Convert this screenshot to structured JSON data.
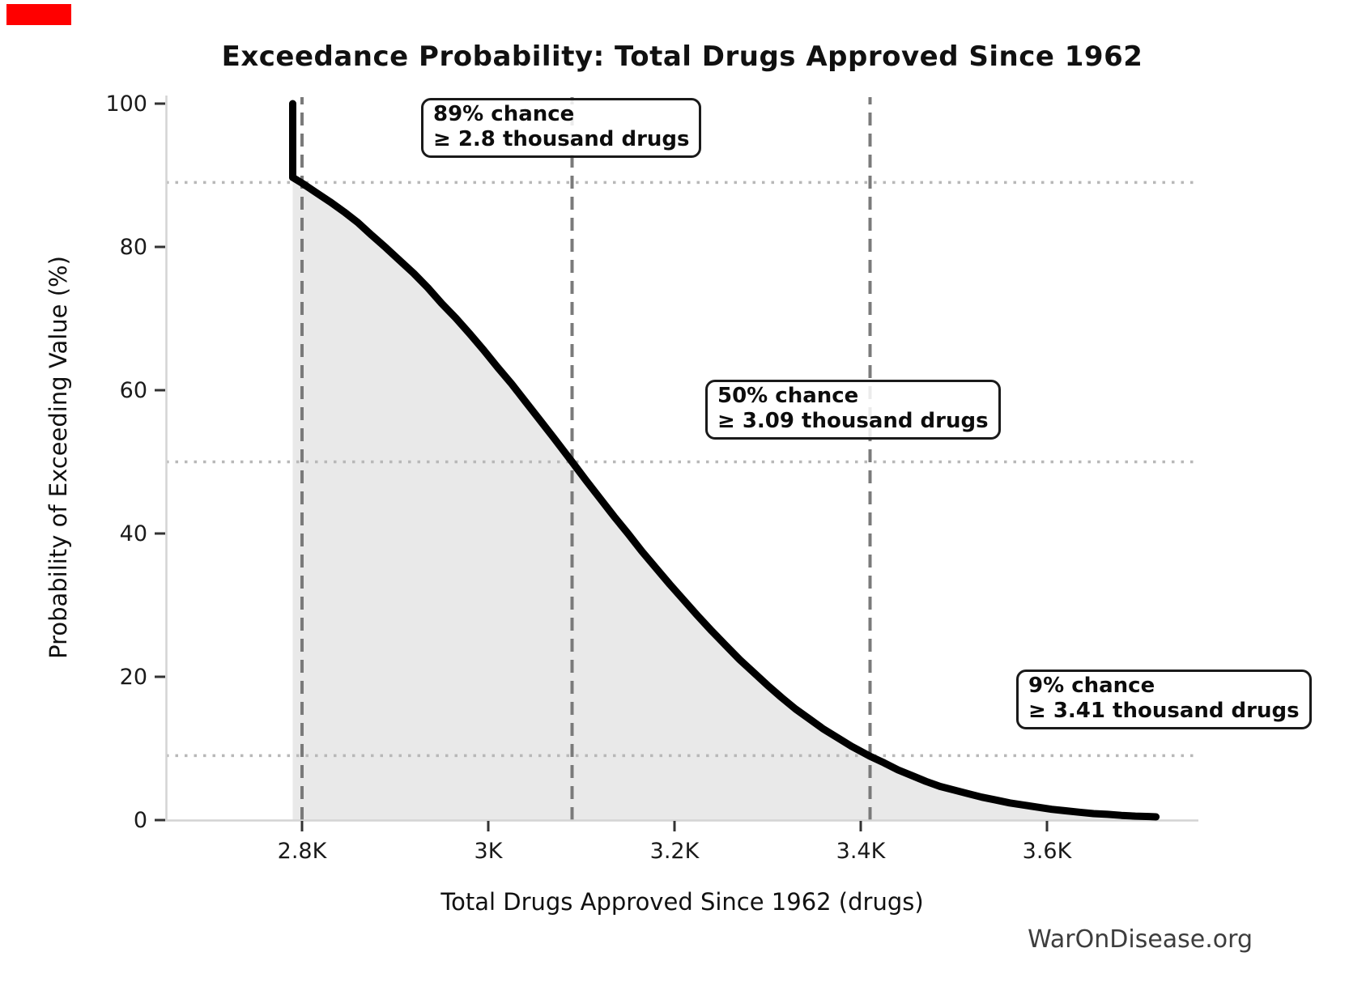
{
  "marker": {
    "color": "#ff0000"
  },
  "chart_data": {
    "type": "line",
    "title": "Exceedance Probability: Total Drugs Approved Since 1962",
    "xlabel": "Total Drugs Approved Since 1962 (drugs)",
    "ylabel": "Probability of Exceeding Value (%)",
    "watermark": "WarOnDisease.org",
    "x_unit": "thousand drugs",
    "xlim": [
      2.654,
      3.76
    ],
    "ylim": [
      0,
      101.1
    ],
    "grid": "reference lines only",
    "legend": "none",
    "x_ticks": [
      {
        "value": 2.8,
        "label": "2.8K"
      },
      {
        "value": 3.0,
        "label": "3K"
      },
      {
        "value": 3.2,
        "label": "3.2K"
      },
      {
        "value": 3.4,
        "label": "3.4K"
      },
      {
        "value": 3.6,
        "label": "3.6K"
      }
    ],
    "y_ticks": [
      {
        "value": 0,
        "label": "0"
      },
      {
        "value": 20,
        "label": "20"
      },
      {
        "value": 40,
        "label": "40"
      },
      {
        "value": 60,
        "label": "60"
      },
      {
        "value": 80,
        "label": "80"
      },
      {
        "value": 100,
        "label": "100"
      }
    ],
    "guides": {
      "vertical_dashed_x": [
        2.8,
        3.09,
        3.41
      ],
      "horizontal_dotted_y": [
        89,
        50,
        9
      ]
    },
    "annotations": [
      {
        "line1": "89% chance",
        "line2": "≥ 2.8 thousand drugs",
        "x_value": 2.8,
        "probability": 89
      },
      {
        "line1": "50% chance",
        "line2": "≥ 3.09 thousand drugs",
        "x_value": 3.09,
        "probability": 50
      },
      {
        "line1": "9% chance",
        "line2": "≥ 3.41 thousand drugs",
        "x_value": 3.41,
        "probability": 9
      }
    ],
    "series": [
      {
        "name": "exceedance-probability-curve",
        "points": [
          [
            2.79,
            100
          ],
          [
            2.79,
            89.7
          ],
          [
            2.8,
            88.9
          ],
          [
            2.815,
            87.6
          ],
          [
            2.83,
            86.3
          ],
          [
            2.845,
            84.9
          ],
          [
            2.86,
            83.4
          ],
          [
            2.875,
            81.6
          ],
          [
            2.89,
            79.9
          ],
          [
            2.905,
            78.1
          ],
          [
            2.92,
            76.3
          ],
          [
            2.935,
            74.3
          ],
          [
            2.95,
            72.1
          ],
          [
            2.965,
            70.1
          ],
          [
            2.98,
            67.9
          ],
          [
            2.995,
            65.6
          ],
          [
            3.01,
            63.2
          ],
          [
            3.025,
            60.9
          ],
          [
            3.04,
            58.4
          ],
          [
            3.055,
            55.9
          ],
          [
            3.07,
            53.4
          ],
          [
            3.09,
            50.0
          ],
          [
            3.105,
            47.4
          ],
          [
            3.12,
            44.9
          ],
          [
            3.135,
            42.4
          ],
          [
            3.15,
            40.0
          ],
          [
            3.165,
            37.5
          ],
          [
            3.18,
            35.2
          ],
          [
            3.195,
            32.9
          ],
          [
            3.21,
            30.7
          ],
          [
            3.225,
            28.5
          ],
          [
            3.24,
            26.4
          ],
          [
            3.255,
            24.4
          ],
          [
            3.27,
            22.4
          ],
          [
            3.285,
            20.6
          ],
          [
            3.3,
            18.8
          ],
          [
            3.315,
            17.1
          ],
          [
            3.33,
            15.5
          ],
          [
            3.345,
            14.1
          ],
          [
            3.36,
            12.7
          ],
          [
            3.375,
            11.5
          ],
          [
            3.39,
            10.3
          ],
          [
            3.41,
            8.9
          ],
          [
            3.425,
            8.0
          ],
          [
            3.44,
            7.0
          ],
          [
            3.455,
            6.2
          ],
          [
            3.47,
            5.4
          ],
          [
            3.485,
            4.7
          ],
          [
            3.5,
            4.2
          ],
          [
            3.515,
            3.7
          ],
          [
            3.53,
            3.2
          ],
          [
            3.545,
            2.8
          ],
          [
            3.56,
            2.4
          ],
          [
            3.575,
            2.1
          ],
          [
            3.59,
            1.8
          ],
          [
            3.605,
            1.5
          ],
          [
            3.62,
            1.3
          ],
          [
            3.635,
            1.1
          ],
          [
            3.65,
            0.9
          ],
          [
            3.665,
            0.8
          ],
          [
            3.68,
            0.65
          ],
          [
            3.695,
            0.55
          ],
          [
            3.71,
            0.5
          ],
          [
            3.717,
            0.45
          ]
        ]
      }
    ],
    "colors": {
      "curve": "#000000",
      "fill": "#e9e9e9",
      "dashed_guide": "#7a7a7a",
      "dotted_guide": "#b8b8b8",
      "spine": "#d4d4d4",
      "tick": "#333333",
      "text": "#1a1a1a"
    }
  }
}
